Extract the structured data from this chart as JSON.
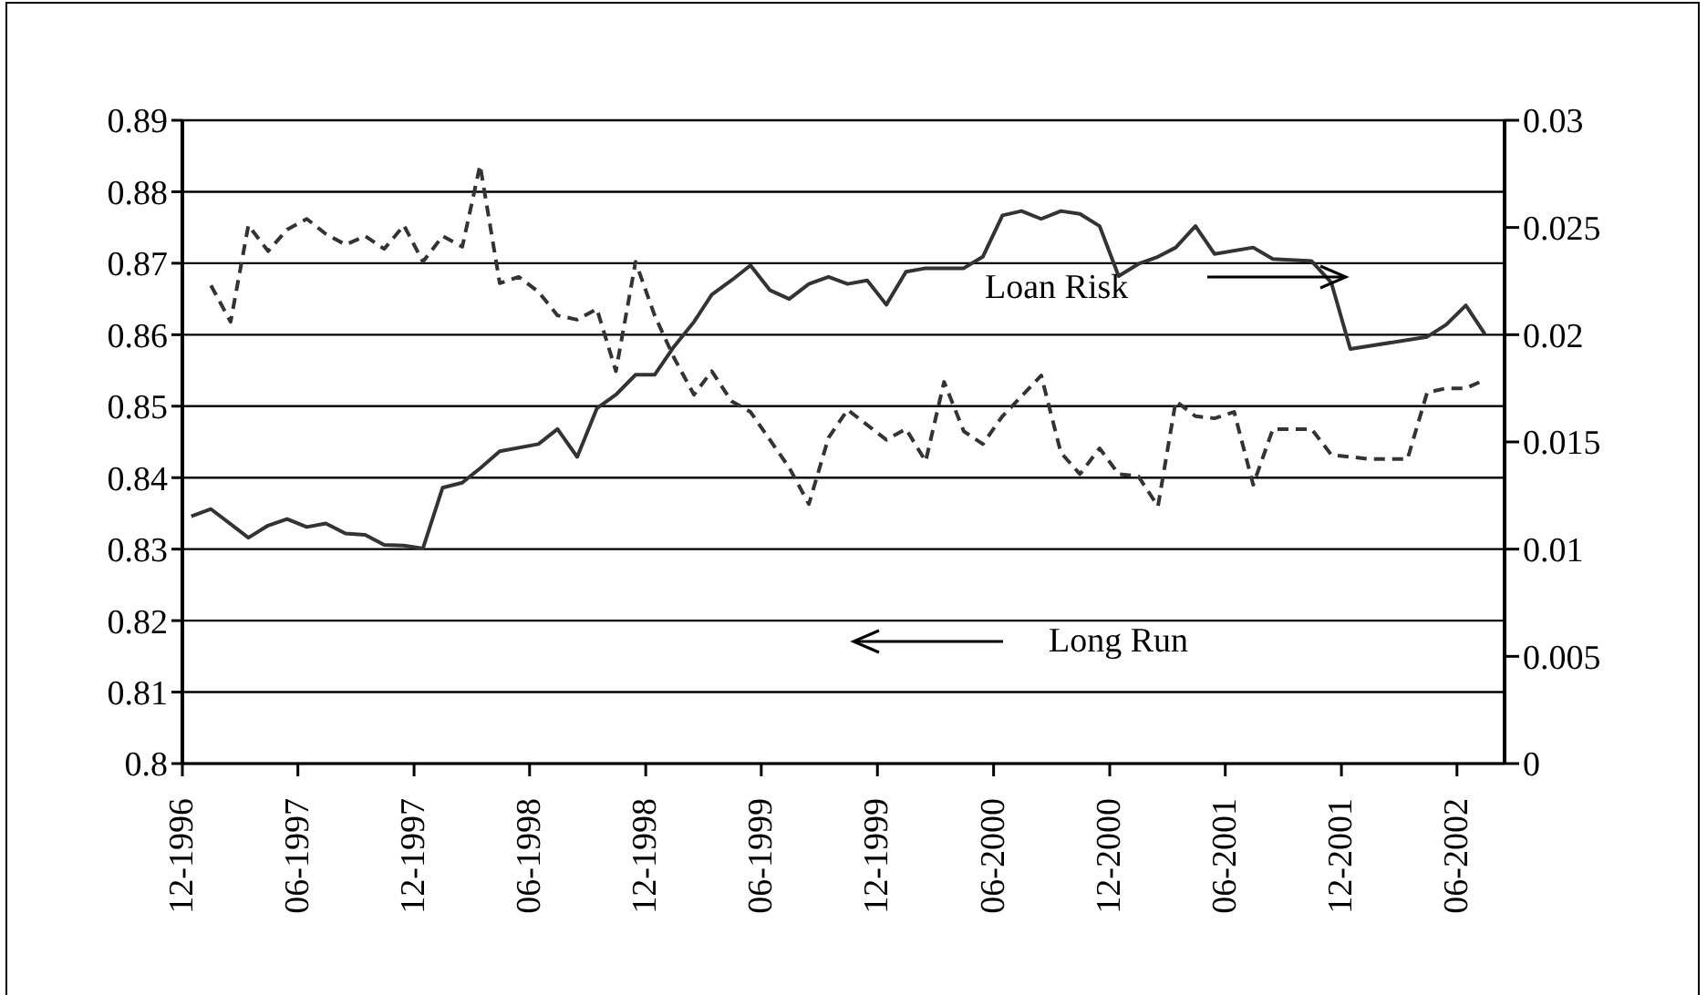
{
  "chart_data": {
    "type": "line",
    "xlim": [
      "1996-12",
      "2002-08-15"
    ],
    "xticks": [
      {
        "value": "1996-12",
        "label": "12-1996"
      },
      {
        "value": "1997-06",
        "label": "06-1997"
      },
      {
        "value": "1997-12",
        "label": "12-1997"
      },
      {
        "value": "1998-06",
        "label": "06-1998"
      },
      {
        "value": "1998-12",
        "label": "12-1998"
      },
      {
        "value": "1999-06",
        "label": "06-1999"
      },
      {
        "value": "1999-12",
        "label": "12-1999"
      },
      {
        "value": "2000-06",
        "label": "06-2000"
      },
      {
        "value": "2000-12",
        "label": "12-2000"
      },
      {
        "value": "2001-06",
        "label": "06-2001"
      },
      {
        "value": "2001-12",
        "label": "12-2001"
      },
      {
        "value": "2002-06",
        "label": "06-2002"
      }
    ],
    "ylim": [
      0.8,
      0.89
    ],
    "yticks": [
      0.8,
      0.81,
      0.82,
      0.83,
      0.84,
      0.85,
      0.86,
      0.87,
      0.88,
      0.89
    ],
    "y2lim": [
      0,
      0.03
    ],
    "y2ticks": [
      0,
      0.005,
      0.01,
      0.015,
      0.02,
      0.025,
      0.03
    ],
    "grid": "y",
    "marker": "none",
    "annotations": [
      "Loan Risk",
      "Long Run"
    ],
    "series": [
      {
        "color": "#333333",
        "line_style": "solid",
        "x": [
          "1996-12-15",
          "1997-01-15",
          "1997-03-15",
          "1997-04-15",
          "1997-05-15",
          "1997-06-15",
          "1997-07-15",
          "1997-08-15",
          "1997-09-15",
          "1997-10-15",
          "1997-11-15",
          "1997-12-15",
          "1998-01-15",
          "1998-02-15",
          "1998-03-15",
          "1998-04-15",
          "1998-06-15",
          "1998-07-15",
          "1998-08-15",
          "1998-09-15",
          "1998-10-15",
          "1998-11-15",
          "1998-12-15",
          "1999-01-15",
          "1999-02-15",
          "1999-03-15",
          "1999-04-15",
          "1999-05-15",
          "1999-06-15",
          "1999-07-15",
          "1999-08-15",
          "1999-09-15",
          "1999-10-15",
          "1999-11-15",
          "1999-12-15",
          "2000-01-15",
          "2000-02-15",
          "2000-04-15",
          "2000-05-15",
          "2000-06-15",
          "2000-07-15",
          "2000-08-15",
          "2000-09-15",
          "2000-10-15",
          "2000-11-15",
          "2000-12-15",
          "2001-01-15",
          "2001-02-15",
          "2001-03-15",
          "2001-04-15",
          "2001-05-15",
          "2001-07-15",
          "2001-08-15",
          "2001-10-15",
          "2001-11-15",
          "2001-12-15",
          "2002-04-15",
          "2002-05-15",
          "2002-06-15",
          "2002-07-15"
        ],
        "values": [
          0.8346,
          0.8356,
          0.8316,
          0.8333,
          0.8342,
          0.8331,
          0.8336,
          0.8322,
          0.832,
          0.8306,
          0.8305,
          0.8301,
          0.8386,
          0.8393,
          0.8413,
          0.8437,
          0.8447,
          0.8468,
          0.8429,
          0.8497,
          0.8516,
          0.8544,
          0.8544,
          0.8584,
          0.8618,
          0.8656,
          0.8676,
          0.8697,
          0.8662,
          0.865,
          0.8671,
          0.8681,
          0.8671,
          0.8676,
          0.8642,
          0.8688,
          0.8693,
          0.8693,
          0.8709,
          0.8767,
          0.8773,
          0.8762,
          0.8773,
          0.8769,
          0.8752,
          0.8682,
          0.8699,
          0.8709,
          0.8722,
          0.8752,
          0.8713,
          0.8722,
          0.8706,
          0.8703,
          0.8673,
          0.858,
          0.8597,
          0.8614,
          0.8641,
          0.8601
        ]
      },
      {
        "color": "#333333",
        "line_style": "dashed",
        "axis": "y2",
        "x": [
          "1997-01-15",
          "1997-02-15",
          "1997-03-15",
          "1997-04-15",
          "1997-05-15",
          "1997-06-15",
          "1997-07-15",
          "1997-08-15",
          "1997-09-15",
          "1997-10-15",
          "1997-11-15",
          "1997-12-15",
          "1998-01-15",
          "1998-02-15",
          "1998-03-15",
          "1998-04-15",
          "1998-05-15",
          "1998-06-15",
          "1998-07-15",
          "1998-08-15",
          "1998-09-15",
          "1998-10-15",
          "1998-11-15",
          "1998-12-15",
          "1999-01-15",
          "1999-02-15",
          "1999-03-15",
          "1999-04-15",
          "1999-05-15",
          "1999-07-15",
          "1999-08-15",
          "1999-09-15",
          "1999-10-15",
          "1999-12-15",
          "2000-01-15",
          "2000-02-15",
          "2000-03-15",
          "2000-04-15",
          "2000-05-15",
          "2000-06-15",
          "2000-08-15",
          "2000-09-15",
          "2000-10-15",
          "2000-11-15",
          "2000-12-15",
          "2001-01-15",
          "2001-02-15",
          "2001-03-15",
          "2001-04-15",
          "2001-05-15",
          "2001-06-15",
          "2001-07-15",
          "2001-08-15",
          "2001-10-15",
          "2001-11-15",
          "2002-01-15",
          "2002-03-15",
          "2002-04-15",
          "2002-05-15",
          "2002-06-15",
          "2002-07-15"
        ],
        "values": [
          0.0223,
          0.0206,
          0.0251,
          0.0239,
          0.0249,
          0.0254,
          0.0247,
          0.0242,
          0.0246,
          0.024,
          0.0251,
          0.0234,
          0.0246,
          0.0241,
          0.0279,
          0.0224,
          0.0227,
          0.022,
          0.0209,
          0.0207,
          0.0212,
          0.0183,
          0.0234,
          0.0209,
          0.0189,
          0.0172,
          0.0183,
          0.0169,
          0.0164,
          0.0138,
          0.0121,
          0.0152,
          0.0165,
          0.0151,
          0.0156,
          0.0141,
          0.0178,
          0.0155,
          0.0149,
          0.0162,
          0.0181,
          0.0145,
          0.0135,
          0.0147,
          0.0135,
          0.0134,
          0.012,
          0.0169,
          0.0162,
          0.0161,
          0.0164,
          0.013,
          0.0156,
          0.0156,
          0.0144,
          0.0142,
          0.0142,
          0.0173,
          0.0175,
          0.0175,
          0.0179
        ]
      }
    ]
  }
}
